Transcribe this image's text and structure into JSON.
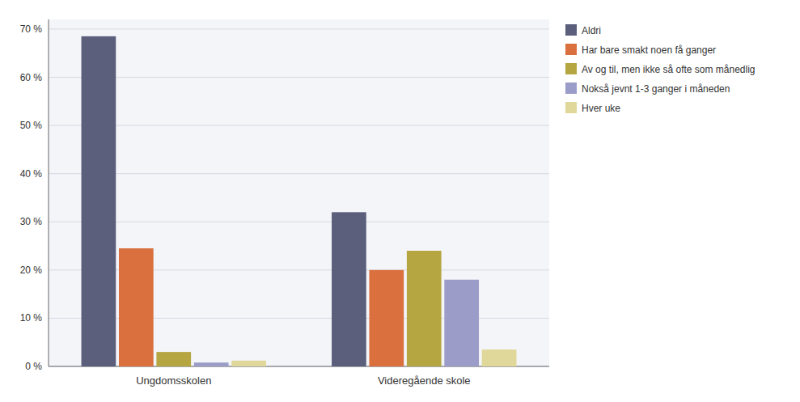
{
  "chart_data": {
    "type": "bar",
    "categories": [
      "Ungdomsskolen",
      "Videregående skole"
    ],
    "series": [
      {
        "name": "Aldri",
        "color": "#5b5f7c",
        "values": [
          68.5,
          32.0
        ]
      },
      {
        "name": "Har bare smakt noen få ganger",
        "color": "#d9703e",
        "values": [
          24.5,
          20.0
        ]
      },
      {
        "name": "Av og til, men ikke så ofte som månedlig",
        "color": "#b5a642",
        "values": [
          3.0,
          24.0
        ]
      },
      {
        "name": "Nokså jevnt 1-3 ganger i måneden",
        "color": "#9b9dc8",
        "values": [
          0.8,
          18.0
        ]
      },
      {
        "name": "Hver uke",
        "color": "#e0d89a",
        "values": [
          1.2,
          3.5
        ]
      }
    ],
    "ylim": [
      0,
      72
    ],
    "yticks": [
      {
        "value": 0,
        "label": "0 %"
      },
      {
        "value": 10,
        "label": "10 %"
      },
      {
        "value": 20,
        "label": "20 %"
      },
      {
        "value": 30,
        "label": "30 %"
      },
      {
        "value": 40,
        "label": "40 %"
      },
      {
        "value": 50,
        "label": "50 %"
      },
      {
        "value": 60,
        "label": "60 %"
      },
      {
        "value": 70,
        "label": "70 %"
      }
    ],
    "grid": true,
    "legend": "right"
  }
}
